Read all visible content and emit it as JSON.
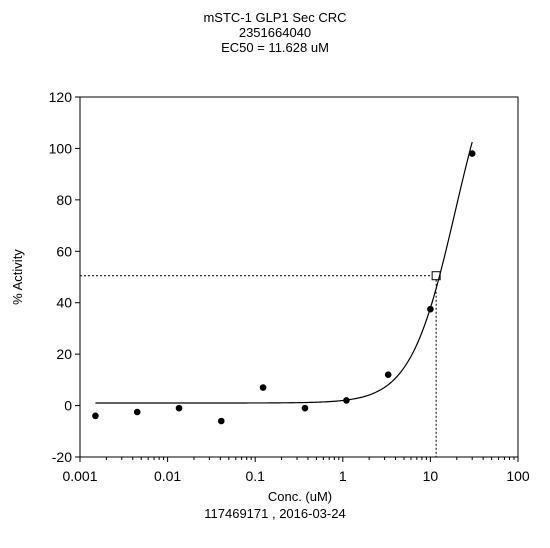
{
  "chart_data": {
    "type": "scatter",
    "title_lines": [
      "mSTC-1 GLP1 Sec CRC",
      "2351664040",
      "EC50 = 11.628 uM"
    ],
    "xlabel": "Conc. (uM)",
    "ylabel": "% Activity",
    "footer": "117469171 , 2016-03-24",
    "x_scale": "log",
    "xlim": [
      0.001,
      100
    ],
    "ylim": [
      -20,
      120
    ],
    "x_ticks": [
      0.001,
      0.01,
      0.1,
      1,
      10,
      100
    ],
    "x_tick_labels": [
      "0.001",
      "0.01",
      "0.1",
      "1",
      "10",
      "100"
    ],
    "y_ticks": [
      -20,
      0,
      20,
      40,
      60,
      80,
      100,
      120
    ],
    "y_tick_labels": [
      "-20",
      "0",
      "20",
      "40",
      "60",
      "80",
      "100",
      "120"
    ],
    "grid": false,
    "points": [
      {
        "x": 0.0015,
        "y": -4
      },
      {
        "x": 0.0045,
        "y": -2.5
      },
      {
        "x": 0.0135,
        "y": -1
      },
      {
        "x": 0.041,
        "y": -6
      },
      {
        "x": 0.123,
        "y": 7
      },
      {
        "x": 0.37,
        "y": -1
      },
      {
        "x": 1.1,
        "y": 2
      },
      {
        "x": 3.3,
        "y": 12
      },
      {
        "x": 10,
        "y": 37.5
      },
      {
        "x": 30,
        "y": 98
      }
    ],
    "fit_curve": {
      "model": "four-parameter logistic",
      "bottom": 1,
      "top": 150,
      "ec50": 19.2,
      "hill": 1.7,
      "x_range": [
        0.0015,
        30
      ]
    },
    "ec50_marker": {
      "x": 11.628,
      "y": 50.5
    }
  }
}
